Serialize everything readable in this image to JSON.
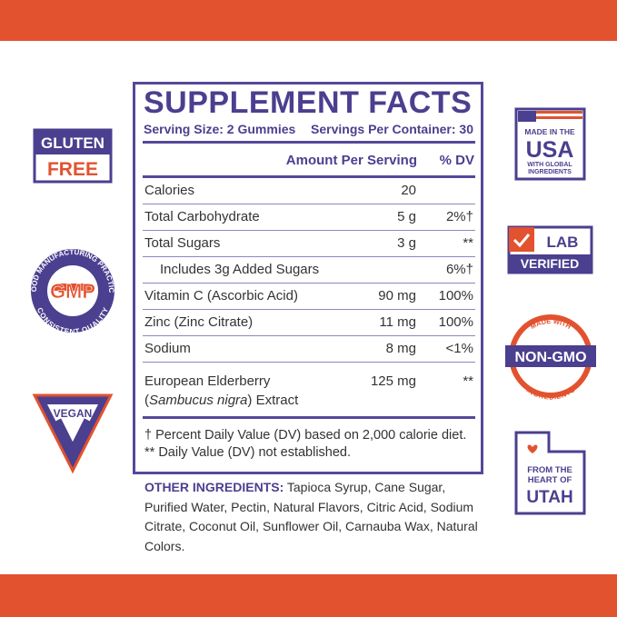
{
  "panel": {
    "title": "SUPPLEMENT FACTS",
    "serving_size": "Serving Size: 2 Gummies",
    "servings_per_container": "Servings Per Container: 30",
    "col_amount": "Amount Per Serving",
    "col_dv": "% DV",
    "rows": [
      {
        "name": "Calories",
        "amount": "20",
        "dv": ""
      },
      {
        "name": "Total Carbohydrate",
        "amount": "5 g",
        "dv": "2%†"
      },
      {
        "name": "Total Sugars",
        "amount": "3 g",
        "dv": "**"
      },
      {
        "name": "Includes 3g Added Sugars",
        "amount": "",
        "dv": "6%†"
      },
      {
        "name": "Vitamin C (Ascorbic Acid)",
        "amount": "90 mg",
        "dv": "100%"
      },
      {
        "name": "Zinc (Zinc Citrate)",
        "amount": "11 mg",
        "dv": "100%"
      },
      {
        "name": "Sodium",
        "amount": "8 mg",
        "dv": "<1%"
      }
    ],
    "elderberry": {
      "line1": "European Elderberry",
      "open": "(",
      "italic": "Sambucus nigra",
      "rest": ") Extract",
      "amount": "125 mg",
      "dv": "**"
    },
    "footnote1": "† Percent Daily Value (DV) based on 2,000 calorie diet.",
    "footnote2": "** Daily Value (DV) not established."
  },
  "other_ingredients": {
    "label": "OTHER INGREDIENTS:",
    "text": "Tapioca Syrup, Cane Sugar, Purified Water, Pectin, Natural Flavors, Citric Acid, Sodium Citrate, Coconut Oil, Sunflower Oil, Carnauba Wax, Natural Colors."
  },
  "badges": {
    "gluten": [
      "GLUTEN",
      "FREE"
    ],
    "gmp": {
      "top": "GOOD MANUFACTURING PRACTICE",
      "center": "GMP",
      "bottom": "CONSISTENT QUALITY"
    },
    "vegan": "VEGAN",
    "usa": [
      "MADE IN THE",
      "USA",
      "WITH GLOBAL",
      "INGREDIENTS"
    ],
    "lab": [
      "LAB",
      "VERIFIED"
    ],
    "nongmo": {
      "top": "MADE WITH",
      "center": "NON-GMO",
      "bottom": "INGREDIENTS"
    },
    "utah": [
      "FROM THE",
      "HEART OF",
      "UTAH"
    ]
  }
}
